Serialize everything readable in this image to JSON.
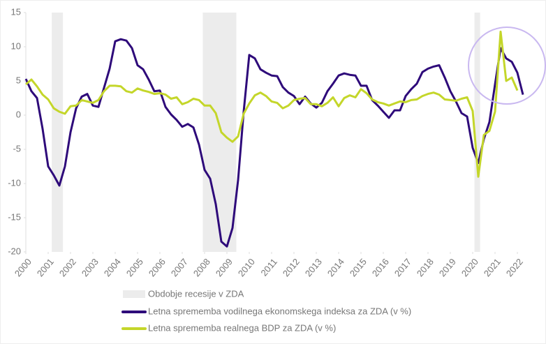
{
  "chart_data": {
    "type": "line",
    "x": [
      2000,
      2000.25,
      2000.5,
      2000.75,
      2001,
      2001.25,
      2001.5,
      2001.75,
      2002,
      2002.25,
      2002.5,
      2002.75,
      2003,
      2003.25,
      2003.5,
      2003.75,
      2004,
      2004.25,
      2004.5,
      2004.75,
      2005,
      2005.25,
      2005.5,
      2005.75,
      2006,
      2006.25,
      2006.5,
      2006.75,
      2007,
      2007.25,
      2007.5,
      2007.75,
      2008,
      2008.25,
      2008.5,
      2008.75,
      2009,
      2009.25,
      2009.5,
      2009.75,
      2010,
      2010.25,
      2010.5,
      2010.75,
      2011,
      2011.25,
      2011.5,
      2011.75,
      2012,
      2012.25,
      2012.5,
      2012.75,
      2013,
      2013.25,
      2013.5,
      2013.75,
      2014,
      2014.25,
      2014.5,
      2014.75,
      2015,
      2015.25,
      2015.5,
      2015.75,
      2016,
      2016.25,
      2016.5,
      2016.75,
      2017,
      2017.25,
      2017.5,
      2017.75,
      2018,
      2018.25,
      2018.5,
      2018.75,
      2019,
      2019.25,
      2019.5,
      2019.75,
      2020,
      2020.25,
      2020.5,
      2020.75,
      2021,
      2021.25,
      2021.5,
      2021.75,
      2022,
      2022.25
    ],
    "series": [
      {
        "name": "Letna sprememba vodilnega ekonomskega indeksa za ZDA (v %)",
        "color": "#2e0a7a",
        "values": [
          5.3,
          3.5,
          2.5,
          -2,
          -7.5,
          -8.8,
          -10.3,
          -7.5,
          -2.5,
          1,
          2.7,
          3.1,
          1.4,
          1.2,
          4,
          6.8,
          10.8,
          11.1,
          10.9,
          9.8,
          7.3,
          6.7,
          5.2,
          3.5,
          3.6,
          1.2,
          0.1,
          -0.7,
          -1.7,
          -1.3,
          -1.8,
          -4.3,
          -8,
          -9.3,
          -13,
          -18.5,
          -19.2,
          -16.5,
          -9.5,
          0.5,
          8.8,
          8.3,
          6.7,
          6.2,
          5.8,
          5.7,
          4.1,
          3.3,
          2.8,
          1.6,
          2.7,
          1.7,
          1.1,
          1.8,
          3.5,
          4.6,
          5.8,
          6.1,
          5.9,
          5.8,
          4.3,
          4.3,
          2.2,
          1.4,
          0.5,
          -0.4,
          0.7,
          0.7,
          2.8,
          3.8,
          4.6,
          6.3,
          6.8,
          7.1,
          7.3,
          5.5,
          3.5,
          2,
          0.3,
          -0.2,
          -4.8,
          -7,
          -3.5,
          -1,
          4.5,
          9.8,
          8.3,
          7.8,
          6.2,
          3
        ]
      },
      {
        "name": "Letna sprememba realnega BDP za ZDA (v %)",
        "color": "#c4d62a",
        "values": [
          4.5,
          5.2,
          4.2,
          3,
          2.3,
          1,
          0.5,
          0.2,
          1.3,
          1.4,
          2.2,
          2,
          1.8,
          2.2,
          3.5,
          4.3,
          4.3,
          4.2,
          3.5,
          3.3,
          3.9,
          3.6,
          3.4,
          3.1,
          3.2,
          3,
          2.4,
          2.6,
          1.6,
          1.9,
          2.4,
          2.2,
          1.4,
          1.4,
          0.3,
          -2.5,
          -3.3,
          -3.9,
          -3.1,
          0.2,
          1.7,
          2.9,
          3.3,
          2.8,
          2,
          1.8,
          1,
          1.4,
          2.2,
          2.4,
          2.5,
          1.6,
          1.6,
          1.3,
          1.8,
          2.6,
          1.3,
          2.5,
          2.9,
          2.6,
          3.8,
          3.2,
          2.3,
          1.9,
          1.7,
          1.4,
          1.7,
          2,
          1.9,
          2.2,
          2.3,
          2.8,
          3.1,
          3.3,
          3,
          2.3,
          2.2,
          2.1,
          2.4,
          2.6,
          0.6,
          -9,
          -2.9,
          -2.3,
          0.5,
          12.2,
          5,
          5.5,
          3.6,
          null
        ]
      }
    ],
    "recessions": {
      "name": "Obdobje recesije v ZDA",
      "color": "#ececec",
      "ranges": [
        [
          2001.16,
          2001.66
        ],
        [
          2007.92,
          2009.42
        ],
        [
          2020.08,
          2020.33
        ]
      ]
    },
    "xlim": [
      2000,
      2022.25
    ],
    "xticks": [
      2000,
      2001,
      2002,
      2003,
      2004,
      2005,
      2006,
      2007,
      2008,
      2009,
      2010,
      2011,
      2012,
      2013,
      2014,
      2015,
      2016,
      2017,
      2018,
      2019,
      2020,
      2021,
      2022
    ],
    "ylim": [
      -20,
      15
    ],
    "yticks": [
      -20,
      -15,
      -10,
      -5,
      0,
      5,
      10,
      15
    ],
    "grid": false
  }
}
